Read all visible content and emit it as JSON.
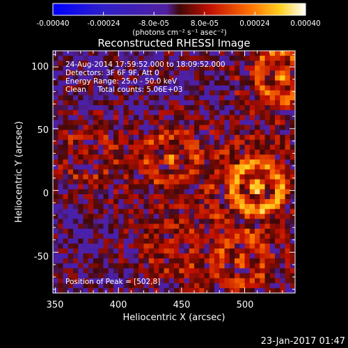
{
  "chart_data": {
    "type": "heatmap",
    "title": "Reconstructed RHESSI Image",
    "xlabel": "Heliocentric X (arcsec)",
    "ylabel": "Heliocentric Y (arcsec)",
    "xlim": [
      348,
      540
    ],
    "ylim": [
      -83,
      113
    ],
    "x_ticks": [
      "350",
      "400",
      "450",
      "500"
    ],
    "y_ticks": [
      "100",
      "50",
      "0",
      "-50"
    ],
    "x_tick_values": [
      350,
      400,
      450,
      500
    ],
    "y_tick_values": [
      100,
      50,
      0,
      -50
    ],
    "colorbar": {
      "tick_labels": [
        "-0.00040",
        "-0.00024",
        "-8.0e-05",
        "8.0e-05",
        "0.00024",
        "0.00040"
      ],
      "tick_values": [
        -0.0004,
        -0.00024,
        -8e-05,
        8e-05,
        0.00024,
        0.0004
      ],
      "units": "(photons cm⁻² s⁻¹ asec⁻²)",
      "range": [
        -0.0004,
        0.0004
      ]
    },
    "grid": false,
    "annotations": {
      "time_range": "24-Aug-2014 17:59:52.000 to 18:09:52.000",
      "detectors": "Detectors: 3F 6F 9F, Att 0",
      "energy_range": "Energy Range: 25.0 - 50.0 keV",
      "clean": "Clean     Total counts: 5.06E+03",
      "peak": "Position of Peak = [502,8]"
    },
    "peak_position": [
      502,
      8
    ],
    "sources": [
      {
        "x": 508,
        "y": 5,
        "peak": 0.0004
      },
      {
        "x": 528,
        "y": 95,
        "peak": 0.00032
      },
      {
        "x": 440,
        "y": 28,
        "peak": 0.00024
      },
      {
        "x": 495,
        "y": -55,
        "peak": 0.00022
      },
      {
        "x": 373,
        "y": 30,
        "peak": 0.00016
      },
      {
        "x": 440,
        "y": -45,
        "peak": 0.00016
      }
    ]
  },
  "footer_date": "23-Jan-2017 01:47"
}
